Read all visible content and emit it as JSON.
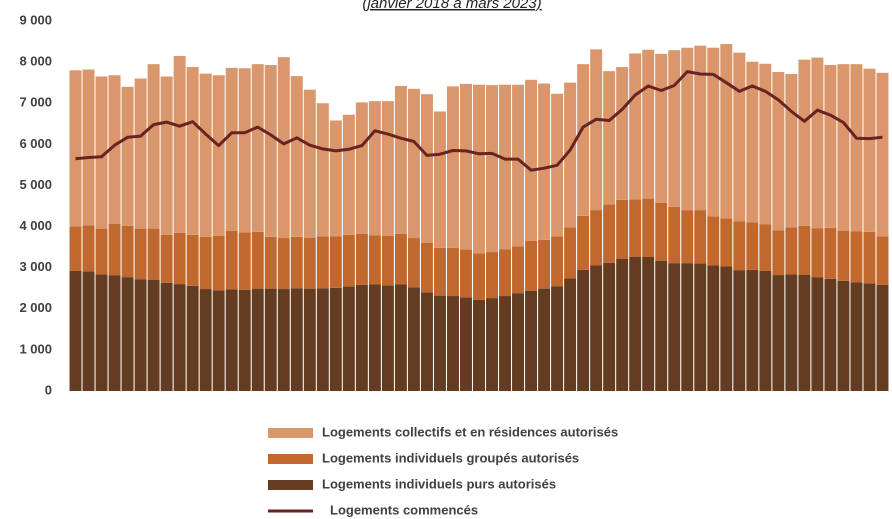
{
  "chart_data": {
    "type": "bar",
    "stacked": true,
    "title": "(janvier 2018 à mars 2023)",
    "categories": [
      null,
      null,
      null,
      null,
      null,
      null,
      null,
      null,
      null,
      null,
      null,
      null,
      null,
      null,
      null,
      null,
      null,
      null,
      null,
      null,
      null,
      null,
      null,
      null,
      null,
      null,
      null,
      null,
      null,
      null,
      null,
      null,
      null,
      null,
      null,
      null,
      null,
      null,
      null,
      null,
      null,
      null,
      null,
      null,
      null,
      null,
      null,
      null,
      null,
      null,
      null,
      null,
      null,
      null,
      null,
      null,
      null,
      null,
      null,
      null,
      null,
      null,
      null
    ],
    "series": [
      {
        "name": "Logements individuels purs autorisés",
        "color": "#633c22",
        "values": [
          2920,
          2910,
          2840,
          2810,
          2770,
          2720,
          2700,
          2630,
          2600,
          2560,
          2480,
          2450,
          2470,
          2460,
          2490,
          2490,
          2480,
          2500,
          2490,
          2500,
          2510,
          2540,
          2580,
          2590,
          2570,
          2590,
          2520,
          2400,
          2320,
          2310,
          2280,
          2220,
          2260,
          2310,
          2380,
          2440,
          2490,
          2550,
          2740,
          2950,
          3060,
          3120,
          3220,
          3260,
          3260,
          3170,
          3110,
          3110,
          3100,
          3060,
          3030,
          2940,
          2950,
          2920,
          2820,
          2840,
          2830,
          2770,
          2730,
          2680,
          2640,
          2620,
          2580
        ]
      },
      {
        "name": "Logements individuels groupés autorisés",
        "color": "#c0682e",
        "values": [
          1080,
          1120,
          1110,
          1260,
          1250,
          1230,
          1250,
          1170,
          1250,
          1240,
          1270,
          1320,
          1430,
          1400,
          1380,
          1260,
          1240,
          1250,
          1240,
          1260,
          1250,
          1260,
          1240,
          1200,
          1200,
          1230,
          1200,
          1200,
          1160,
          1170,
          1160,
          1130,
          1120,
          1140,
          1140,
          1210,
          1190,
          1210,
          1240,
          1310,
          1340,
          1420,
          1430,
          1400,
          1420,
          1410,
          1370,
          1290,
          1300,
          1190,
          1170,
          1190,
          1150,
          1130,
          1090,
          1140,
          1190,
          1190,
          1240,
          1220,
          1240,
          1250,
          1180
        ]
      },
      {
        "name": "Logements  collectifs et en résidences autorisés",
        "color": "#d9976b",
        "values": [
          3800,
          3790,
          3700,
          3610,
          3380,
          3650,
          4000,
          3850,
          4300,
          4080,
          3970,
          3910,
          3960,
          3990,
          4080,
          4180,
          4400,
          3910,
          3600,
          3240,
          2820,
          2920,
          3200,
          3260,
          3280,
          3600,
          3630,
          3620,
          3320,
          3930,
          4030,
          4100,
          4060,
          4000,
          3930,
          3920,
          3800,
          3470,
          3520,
          3690,
          3910,
          3240,
          3230,
          3550,
          3620,
          3620,
          3810,
          3950,
          4000,
          4100,
          4240,
          4100,
          3910,
          3910,
          3850,
          3730,
          4040,
          4150,
          3960,
          4050,
          4070,
          3970,
          3980
        ]
      },
      {
        "name": "Logements commencés",
        "color": "#6b2222",
        "type": "line",
        "values": [
          5650,
          5680,
          5700,
          5980,
          6170,
          6200,
          6480,
          6540,
          6440,
          6550,
          6250,
          5970,
          6280,
          6280,
          6420,
          6230,
          6010,
          6160,
          5980,
          5890,
          5840,
          5880,
          5970,
          6330,
          6250,
          6150,
          6070,
          5730,
          5760,
          5850,
          5840,
          5770,
          5780,
          5640,
          5640,
          5370,
          5420,
          5490,
          5860,
          6420,
          6610,
          6580,
          6850,
          7200,
          7420,
          7310,
          7430,
          7770,
          7710,
          7700,
          7500,
          7290,
          7420,
          7290,
          7080,
          6800,
          6560,
          6830,
          6710,
          6530,
          6150,
          6140,
          6170
        ]
      }
    ],
    "ylim": [
      0,
      9000
    ],
    "yticks": [
      0,
      {
        "value": 1000,
        "label": "1 000"
      },
      {
        "value": 2000,
        "label": "2 000"
      },
      {
        "value": 3000,
        "label": "3 000"
      },
      {
        "value": 4000,
        "label": "4 000"
      },
      {
        "value": 5000,
        "label": "5 000"
      },
      {
        "value": 6000,
        "label": "6 000"
      },
      {
        "value": 7000,
        "label": "7 000"
      },
      {
        "value": 8000,
        "label": "8 000"
      },
      {
        "value": 9000,
        "label": "9 000"
      }
    ],
    "legend": "bottom"
  }
}
